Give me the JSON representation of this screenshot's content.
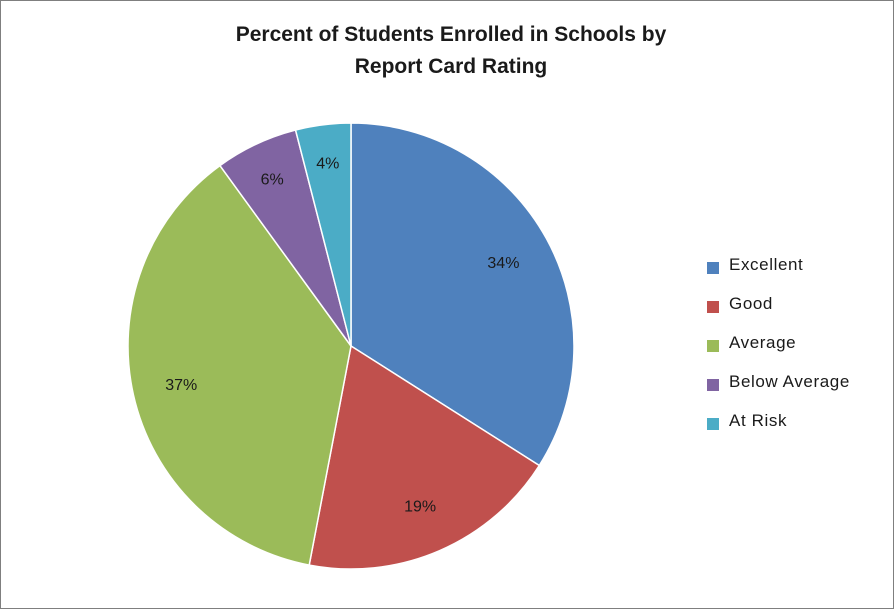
{
  "chart_data": {
    "type": "pie",
    "title": [
      "Percent of Students Enrolled in Schools by",
      "Report Card Rating"
    ],
    "categories": [
      "Excellent",
      "Good",
      "Average",
      "Below Average",
      "At Risk"
    ],
    "values": [
      34,
      19,
      37,
      6,
      4
    ],
    "data_labels": [
      "34%",
      "19%",
      "37%",
      "6%",
      "4%"
    ],
    "colors": [
      "#4f81bd",
      "#c0504d",
      "#9bbb59",
      "#8064a2",
      "#4bacc6"
    ],
    "legend_position": "right"
  }
}
